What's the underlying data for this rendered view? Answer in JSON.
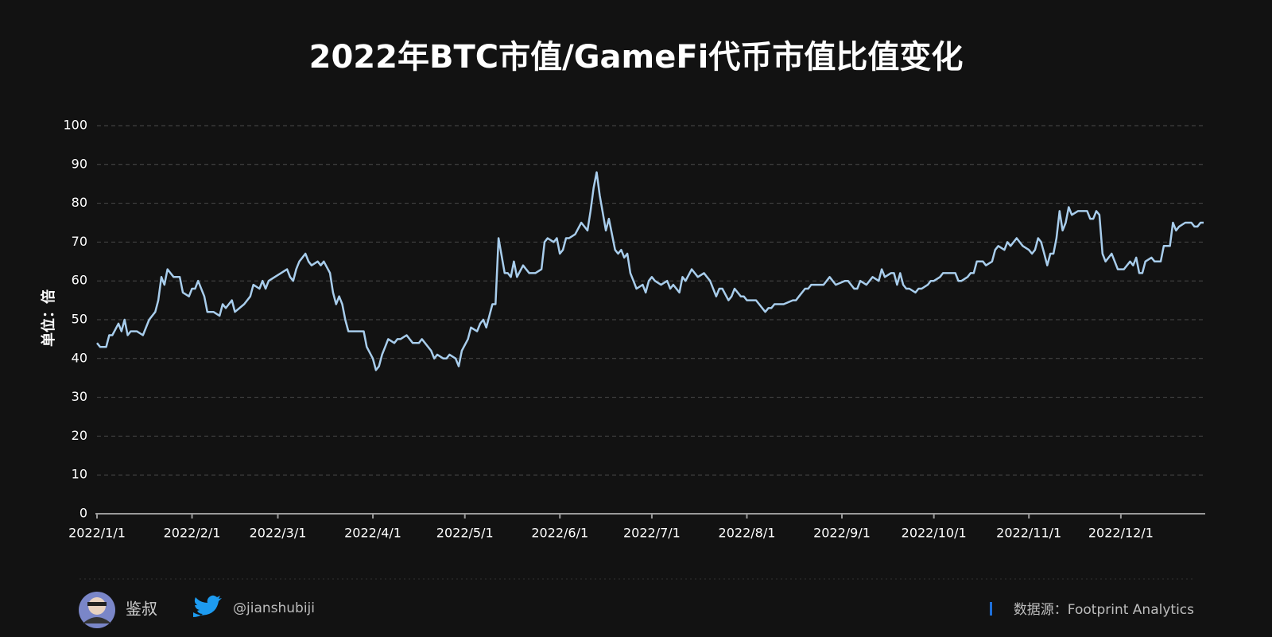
{
  "chart_data": {
    "type": "line",
    "title": "2022年BTC市值/GameFi代币市值比值变化",
    "y_label": "单位：倍",
    "color": "#a8cdec",
    "grid": true,
    "xlim": [
      "2022/1/1",
      "2022/12/28"
    ],
    "xticks": [
      "2022/1/1",
      "2022/2/1",
      "2022/3/1",
      "2022/4/1",
      "2022/5/1",
      "2022/6/1",
      "2022/7/1",
      "2022/8/1",
      "2022/9/1",
      "2022/10/1",
      "2022/11/1",
      "2022/12/1"
    ],
    "ylim": [
      0,
      100
    ],
    "yticks": [
      0,
      10,
      20,
      30,
      40,
      50,
      60,
      70,
      80,
      90,
      100
    ],
    "x": [
      "2022/1/1",
      "2022/1/2",
      "2022/1/4",
      "2022/1/5",
      "2022/1/6",
      "2022/1/8",
      "2022/1/9",
      "2022/1/10",
      "2022/1/11",
      "2022/1/12",
      "2022/1/14",
      "2022/1/16",
      "2022/1/18",
      "2022/1/20",
      "2022/1/21",
      "2022/1/22",
      "2022/1/23",
      "2022/1/24",
      "2022/1/26",
      "2022/1/28",
      "2022/1/29",
      "2022/1/31",
      "2022/2/1",
      "2022/2/2",
      "2022/2/3",
      "2022/2/5",
      "2022/2/6",
      "2022/2/8",
      "2022/2/10",
      "2022/2/11",
      "2022/2/12",
      "2022/2/14",
      "2022/2/15",
      "2022/2/18",
      "2022/2/20",
      "2022/2/21",
      "2022/2/23",
      "2022/2/24",
      "2022/2/25",
      "2022/2/26",
      "2022/2/28",
      "2022/3/2",
      "2022/3/4",
      "2022/3/5",
      "2022/3/6",
      "2022/3/7",
      "2022/3/8",
      "2022/3/10",
      "2022/3/11",
      "2022/3/12",
      "2022/3/14",
      "2022/3/15",
      "2022/3/16",
      "2022/3/18",
      "2022/3/19",
      "2022/3/20",
      "2022/3/21",
      "2022/3/22",
      "2022/3/23",
      "2022/3/24",
      "2022/3/27",
      "2022/3/29",
      "2022/3/30",
      "2022/4/1",
      "2022/4/2",
      "2022/4/3",
      "2022/4/4",
      "2022/4/5",
      "2022/4/6",
      "2022/4/8",
      "2022/4/9",
      "2022/4/10",
      "2022/4/12",
      "2022/4/13",
      "2022/4/14",
      "2022/4/16",
      "2022/4/17",
      "2022/4/18",
      "2022/4/20",
      "2022/4/21",
      "2022/4/22",
      "2022/4/24",
      "2022/4/25",
      "2022/4/26",
      "2022/4/28",
      "2022/4/29",
      "2022/4/30",
      "2022/5/2",
      "2022/5/3",
      "2022/5/5",
      "2022/5/6",
      "2022/5/7",
      "2022/5/8",
      "2022/5/10",
      "2022/5/11",
      "2022/5/12",
      "2022/5/14",
      "2022/5/15",
      "2022/5/16",
      "2022/5/17",
      "2022/5/18",
      "2022/5/20",
      "2022/5/21",
      "2022/5/22",
      "2022/5/24",
      "2022/5/26",
      "2022/5/27",
      "2022/5/28",
      "2022/5/30",
      "2022/5/31",
      "2022/6/1",
      "2022/6/2",
      "2022/6/3",
      "2022/6/4",
      "2022/6/6",
      "2022/6/8",
      "2022/6/9",
      "2022/6/10",
      "2022/6/11",
      "2022/6/12",
      "2022/6/13",
      "2022/6/14",
      "2022/6/16",
      "2022/6/17",
      "2022/6/18",
      "2022/6/19",
      "2022/6/20",
      "2022/6/21",
      "2022/6/22",
      "2022/6/23",
      "2022/6/24",
      "2022/6/25",
      "2022/6/26",
      "2022/6/28",
      "2022/6/29",
      "2022/6/30",
      "2022/7/1",
      "2022/7/2",
      "2022/7/4",
      "2022/7/6",
      "2022/7/7",
      "2022/7/8",
      "2022/7/10",
      "2022/7/11",
      "2022/7/12",
      "2022/7/14",
      "2022/7/15",
      "2022/7/16",
      "2022/7/18",
      "2022/7/19",
      "2022/7/20",
      "2022/7/22",
      "2022/7/23",
      "2022/7/24",
      "2022/7/26",
      "2022/7/27",
      "2022/7/28",
      "2022/7/30",
      "2022/7/31",
      "2022/8/1",
      "2022/8/4",
      "2022/8/5",
      "2022/8/7",
      "2022/8/8",
      "2022/8/9",
      "2022/8/10",
      "2022/8/13",
      "2022/8/16",
      "2022/8/17",
      "2022/8/18",
      "2022/8/20",
      "2022/8/21",
      "2022/8/22",
      "2022/8/26",
      "2022/8/28",
      "2022/8/29",
      "2022/8/30",
      "2022/9/2",
      "2022/9/3",
      "2022/9/5",
      "2022/9/6",
      "2022/9/7",
      "2022/9/9",
      "2022/9/10",
      "2022/9/11",
      "2022/9/13",
      "2022/9/14",
      "2022/9/15",
      "2022/9/17",
      "2022/9/18",
      "2022/9/19",
      "2022/9/20",
      "2022/9/21",
      "2022/9/22",
      "2022/9/23",
      "2022/9/25",
      "2022/9/26",
      "2022/9/27",
      "2022/9/29",
      "2022/9/30",
      "2022/10/1",
      "2022/10/3",
      "2022/10/4",
      "2022/10/8",
      "2022/10/9",
      "2022/10/10",
      "2022/10/12",
      "2022/10/13",
      "2022/10/14",
      "2022/10/15",
      "2022/10/17",
      "2022/10/18",
      "2022/10/20",
      "2022/10/21",
      "2022/10/22",
      "2022/10/24",
      "2022/10/25",
      "2022/10/26",
      "2022/10/28",
      "2022/10/29",
      "2022/10/30",
      "2022/11/1",
      "2022/11/2",
      "2022/11/3",
      "2022/11/4",
      "2022/11/5",
      "2022/11/6",
      "2022/11/7",
      "2022/11/8",
      "2022/11/9",
      "2022/11/10",
      "2022/11/11",
      "2022/11/12",
      "2022/11/13",
      "2022/11/14",
      "2022/11/15",
      "2022/11/17",
      "2022/11/20",
      "2022/11/21",
      "2022/11/22",
      "2022/11/23",
      "2022/11/24",
      "2022/11/25",
      "2022/11/26",
      "2022/11/27",
      "2022/11/28",
      "2022/11/29",
      "2022/11/30",
      "2022/12/2",
      "2022/12/4",
      "2022/12/5",
      "2022/12/6",
      "2022/12/7",
      "2022/12/8",
      "2022/12/9",
      "2022/12/11",
      "2022/12/12",
      "2022/12/14",
      "2022/12/15",
      "2022/12/17",
      "2022/12/18",
      "2022/12/19",
      "2022/12/20",
      "2022/12/22",
      "2022/12/24",
      "2022/12/25",
      "2022/12/26",
      "2022/12/27",
      "2022/12/28"
    ],
    "values": [
      44,
      43,
      43,
      46,
      46,
      49,
      47,
      50,
      46,
      47,
      47,
      46,
      50,
      52,
      55,
      61,
      59,
      63,
      61,
      61,
      57,
      56,
      58,
      58,
      60,
      56,
      52,
      52,
      51,
      54,
      53,
      55,
      52,
      54,
      56,
      59,
      58,
      60,
      58,
      60,
      61,
      62,
      63,
      61,
      60,
      63,
      65,
      67,
      65,
      64,
      65,
      64,
      65,
      62,
      57,
      54,
      56,
      54,
      50,
      47,
      47,
      47,
      43,
      40,
      37,
      38,
      41,
      43,
      45,
      44,
      45,
      45,
      46,
      45,
      44,
      44,
      45,
      44,
      42,
      40,
      41,
      40,
      40,
      41,
      40,
      38,
      42,
      45,
      48,
      47,
      49,
      50,
      48,
      54,
      54,
      71,
      62,
      62,
      61,
      65,
      61,
      64,
      63,
      62,
      62,
      63,
      70,
      71,
      70,
      71,
      67,
      68,
      71,
      71,
      72,
      75,
      74,
      73,
      78,
      84,
      88,
      82,
      73,
      76,
      72,
      68,
      67,
      68,
      66,
      67,
      62,
      60,
      58,
      59,
      57,
      60,
      61,
      60,
      59,
      60,
      58,
      59,
      57,
      61,
      60,
      63,
      62,
      61,
      62,
      61,
      60,
      56,
      58,
      58,
      55,
      56,
      58,
      56,
      56,
      55,
      55,
      54,
      52,
      53,
      53,
      54,
      54,
      55,
      55,
      56,
      58,
      58,
      59,
      59,
      61,
      60,
      59,
      60,
      60,
      58,
      58,
      60,
      59,
      60,
      61,
      60,
      63,
      61,
      62,
      62,
      59,
      62,
      59,
      58,
      58,
      57,
      58,
      58,
      59,
      60,
      60,
      61,
      62,
      62,
      60,
      60,
      61,
      62,
      62,
      65,
      65,
      64,
      65,
      68,
      69,
      68,
      70,
      69,
      71,
      70,
      69,
      68,
      67,
      68,
      71,
      70,
      67,
      64,
      67,
      67,
      71,
      78,
      73,
      75,
      79,
      77,
      78,
      78,
      76,
      76,
      78,
      77,
      67,
      65,
      66,
      67,
      65,
      63,
      63,
      65,
      64,
      66,
      62,
      62,
      65,
      66,
      65,
      65,
      69,
      69,
      75,
      73,
      74,
      75,
      75,
      74,
      74,
      75,
      75
    ]
  },
  "footer": {
    "author": "鉴叔",
    "handle": "@jianshubiji",
    "source": "数据源：Footprint Analytics"
  }
}
